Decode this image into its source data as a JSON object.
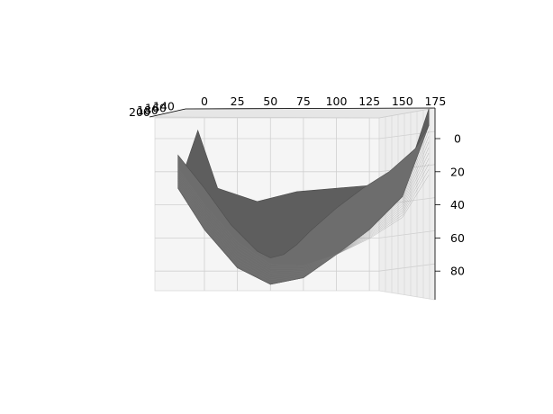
{
  "chart_data": {
    "type": "surface3d",
    "title": "",
    "xlabel": "",
    "ylabel": "",
    "zlabel": "",
    "x_ticks": [
      0,
      25,
      50,
      75,
      100,
      125,
      150,
      175
    ],
    "z_ticks": [
      0,
      20,
      40,
      60,
      80
    ],
    "y_ticks": [
      200,
      180,
      160,
      140
    ],
    "y_tick_labels": [
      "200",
      "180",
      "160",
      "140"
    ],
    "xlim": [
      -40,
      180
    ],
    "zlim": [
      -15,
      95
    ],
    "z_inverted": true,
    "grid": true,
    "surface_color": "#5e5e5e",
    "pane_color": "#f2f2f2",
    "series": [
      {
        "x": [
          -20,
          0,
          20,
          40,
          50,
          60,
          70,
          80,
          100,
          120,
          140,
          160,
          170
        ],
        "z": [
          10,
          30,
          52,
          68,
          72,
          70,
          64,
          56,
          42,
          30,
          20,
          6,
          -8
        ]
      },
      {
        "x": [
          -20,
          0,
          25,
          50,
          75,
          100,
          125,
          150,
          170
        ],
        "z": [
          30,
          55,
          78,
          88,
          84,
          70,
          55,
          35,
          -8
        ]
      }
    ]
  }
}
